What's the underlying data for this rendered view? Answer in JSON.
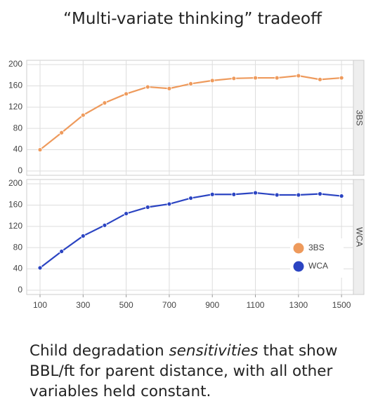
{
  "title": "“Multi-variate thinking” tradeoff",
  "caption": [
    "Child degradation ",
    "sensitivities",
    " that show BBL/ft for parent distance, with all other variables held constant."
  ],
  "chart_data": [
    {
      "type": "line",
      "panel_label": "3BS",
      "x": [
        100,
        200,
        300,
        400,
        500,
        600,
        700,
        800,
        900,
        1000,
        1100,
        1200,
        1300,
        1400,
        1500
      ],
      "series": [
        {
          "name": "3BS",
          "color": "#ee9a5c",
          "values": [
            40,
            72,
            105,
            128,
            145,
            158,
            155,
            164,
            170,
            174,
            175,
            175,
            179,
            172,
            175
          ]
        }
      ],
      "xlim": [
        38,
        1555
      ],
      "ylim": [
        -8,
        208
      ],
      "yticks": [
        0,
        40,
        80,
        120,
        160,
        200
      ],
      "grid": true
    },
    {
      "type": "line",
      "panel_label": "WCA",
      "x": [
        100,
        200,
        300,
        400,
        500,
        600,
        700,
        800,
        900,
        1000,
        1100,
        1200,
        1300,
        1400,
        1500
      ],
      "series": [
        {
          "name": "WCA",
          "color": "#2b44c2",
          "values": [
            42,
            73,
            102,
            122,
            144,
            156,
            162,
            173,
            180,
            180,
            183,
            179,
            179,
            181,
            177
          ]
        }
      ],
      "xlim": [
        38,
        1555
      ],
      "ylim": [
        -8,
        208
      ],
      "yticks": [
        0,
        40,
        80,
        120,
        160,
        200
      ],
      "xticks": [
        100,
        300,
        500,
        700,
        900,
        1100,
        1300,
        1500
      ],
      "grid": true,
      "legend": "lower right"
    }
  ]
}
